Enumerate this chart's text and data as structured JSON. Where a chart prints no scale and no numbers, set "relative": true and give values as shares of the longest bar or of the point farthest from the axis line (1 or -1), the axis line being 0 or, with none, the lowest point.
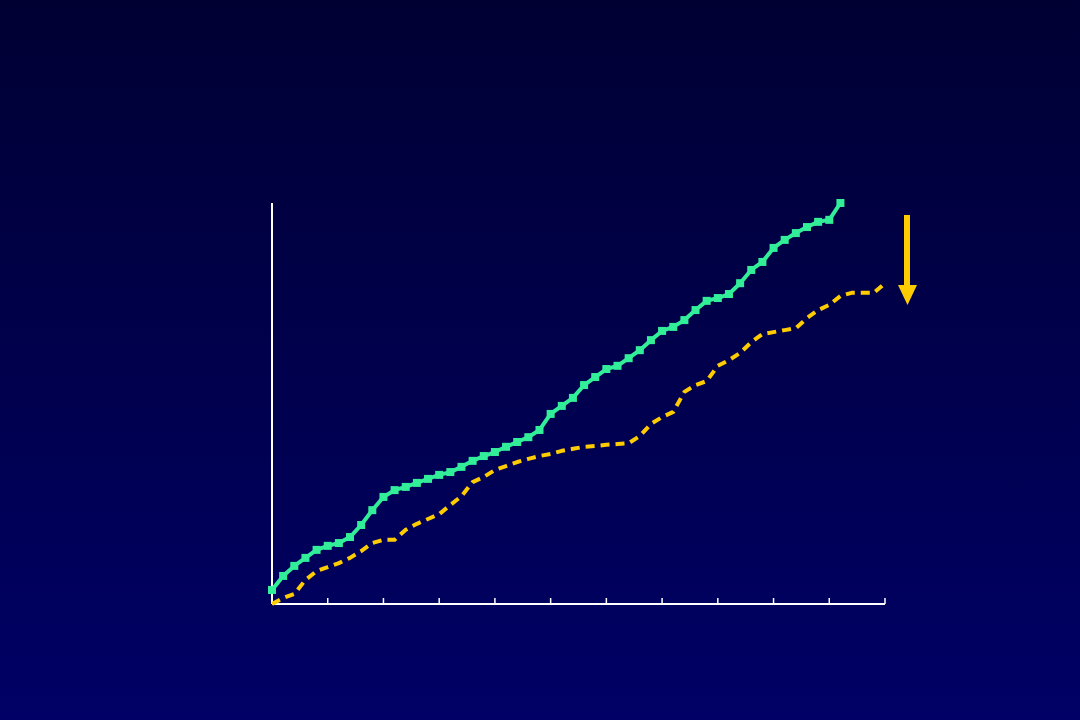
{
  "chart_data": {
    "type": "line",
    "relative": true,
    "categories": [
      null,
      null,
      null,
      null,
      null,
      null,
      null,
      null,
      null,
      null,
      null,
      null,
      null,
      null,
      null,
      null,
      null,
      null,
      null,
      null,
      null,
      null,
      null,
      null,
      null,
      null,
      null,
      null,
      null,
      null,
      null,
      null,
      null,
      null,
      null,
      null,
      null,
      null,
      null,
      null,
      null,
      null,
      null,
      null,
      null,
      null,
      null,
      null,
      null,
      null,
      null,
      null,
      null,
      null,
      null,
      null
    ],
    "series": [
      {
        "color": "#33ee99",
        "marker": "square",
        "line_style": "solid",
        "values": [
          0.035,
          0.07,
          0.095,
          0.115,
          0.135,
          0.145,
          0.152,
          0.167,
          0.197,
          0.234,
          0.267,
          0.284,
          0.292,
          0.302,
          0.312,
          0.322,
          0.329,
          0.342,
          0.357,
          0.369,
          0.379,
          0.392,
          0.404,
          0.416,
          0.434,
          0.474,
          0.494,
          0.514,
          0.546,
          0.566,
          0.586,
          0.594,
          0.613,
          0.633,
          0.658,
          0.681,
          0.691,
          0.708,
          0.733,
          0.756,
          0.763,
          0.773,
          0.8,
          0.833,
          0.853,
          0.888,
          0.908,
          0.925,
          0.94,
          0.953,
          0.958,
          1.0,
          null,
          null,
          null,
          null
        ]
      },
      {
        "color": "#ffcc00",
        "line_style": "dashed",
        "values": [
          0.0,
          0.015,
          0.025,
          0.06,
          0.082,
          0.092,
          0.102,
          0.115,
          0.132,
          0.152,
          0.16,
          0.16,
          0.185,
          0.2,
          0.212,
          0.224,
          0.247,
          0.269,
          0.304,
          0.317,
          0.334,
          0.344,
          0.354,
          0.362,
          0.369,
          0.374,
          0.382,
          0.387,
          0.392,
          0.394,
          0.397,
          0.399,
          0.401,
          0.419,
          0.449,
          0.466,
          0.479,
          0.529,
          0.546,
          0.556,
          0.594,
          0.608,
          0.626,
          0.653,
          0.673,
          0.678,
          0.683,
          0.688,
          0.713,
          0.733,
          0.746,
          0.768,
          0.776,
          0.776,
          0.776,
          0.8
        ]
      }
    ]
  }
}
